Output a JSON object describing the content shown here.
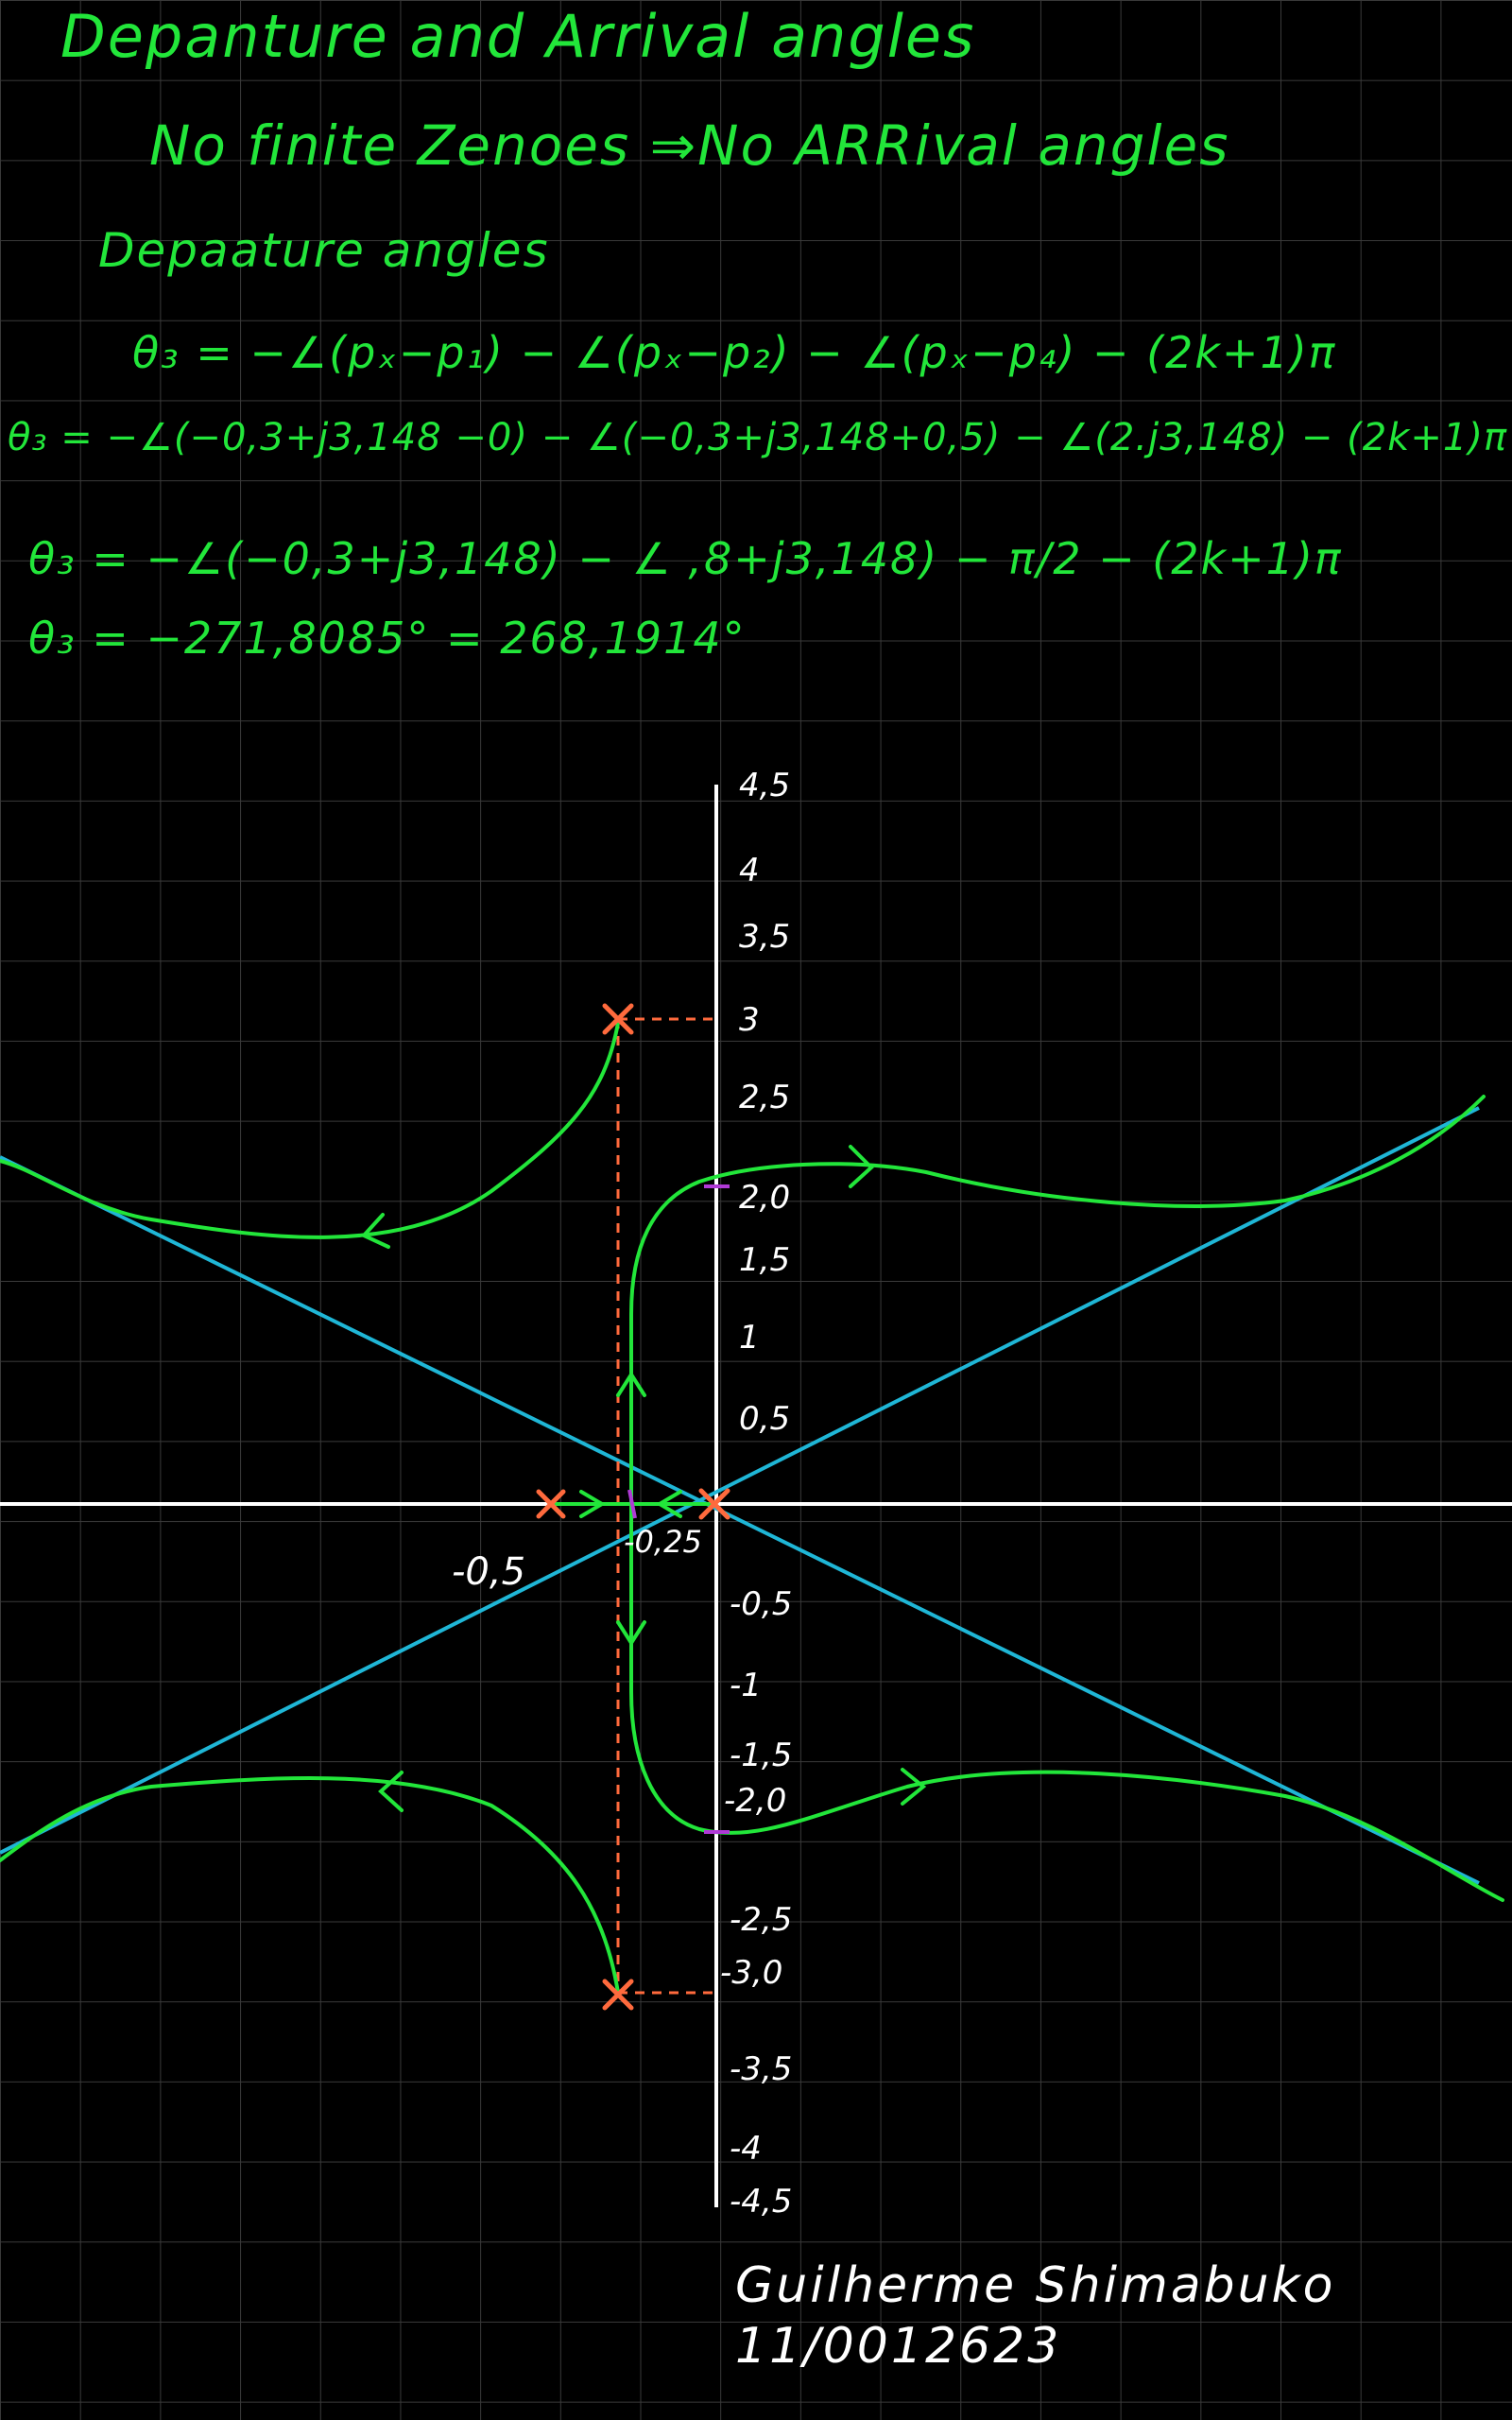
{
  "notes": {
    "title": "Depanture and Arrival angles",
    "line_no_zeros": "No finite Zenoes ⇒No ARRival angles",
    "subtitle": "Depaature angles",
    "eq1": "θ₃ = −∠(pₓ−p₁) − ∠(pₓ−p₂) − ∠(pₓ−p₄) − (2k+1)π",
    "eq2": "θ₃ = −∠(−0,3+j3,148 −0) − ∠(−0,3+j3,148+0,5) − ∠(2.j3,148) − (2k+1)π",
    "eq3": "θ₃ = −∠(−0,3+j3,148) − ∠ ,8+j3,148) − π/2 − (2k+1)π",
    "eq4": "θ₃ = −271,8085° = 268,1914°"
  },
  "plot": {
    "y_ticks": [
      "4,5",
      "4",
      "3,5",
      "3",
      "2,5",
      "2,0",
      "1,5",
      "1",
      "0,5",
      "-0,5",
      "-1",
      "-1,5",
      "-2,0",
      "-2,5",
      "-3,0",
      "-3,5",
      "-4",
      "-4,5"
    ],
    "x_labels": {
      "minus_half": "-0,5",
      "centroid": "-0,25"
    }
  },
  "signature": {
    "name": "Guilherme Shimabuko",
    "id": "11/0012623"
  },
  "colors": {
    "ink": "#22e63a",
    "asymptote": "#1fb6d6",
    "pole": "#ff6a3d",
    "axis": "#ffffff",
    "tick_mark": "#b03ad6"
  }
}
